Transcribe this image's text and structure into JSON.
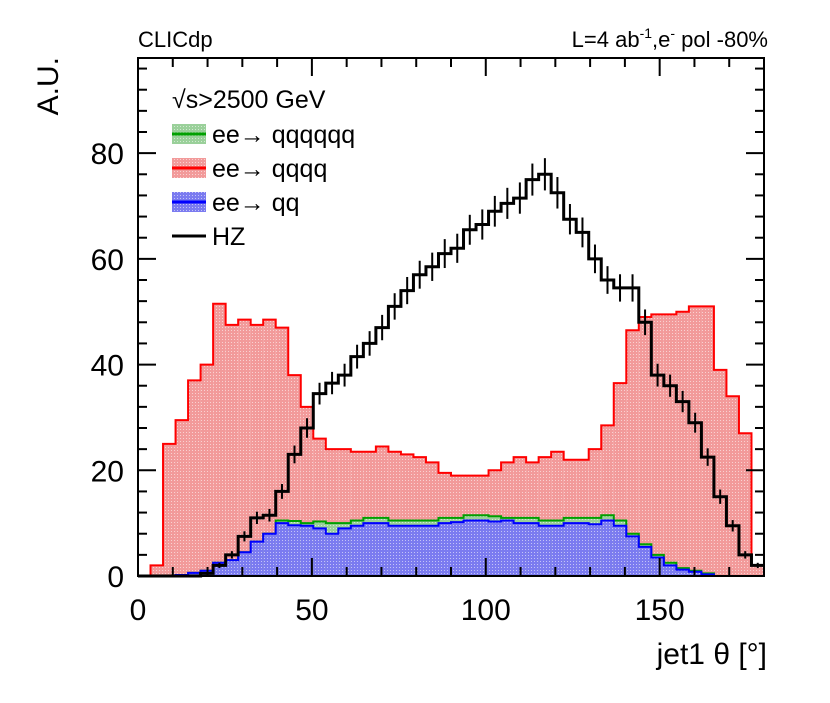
{
  "chart_data": {
    "type": "bar",
    "experiment_label": "CLICdp",
    "lumi_label": "L=4 ab",
    "lumi_sup": "-1",
    "lumi_mid": ",e",
    "lumi_sup2": "-",
    "lumi_end": " pol -80%",
    "legend_title": "√s>2500 GeV",
    "ylabel": "A.U.",
    "xlabel": "jet1 θ [°]",
    "xlim": [
      0,
      180
    ],
    "ylim": [
      0,
      98
    ],
    "x_ticks": [
      "0",
      "50",
      "100",
      "150"
    ],
    "y_ticks": [
      "0",
      "20",
      "40",
      "60",
      "80"
    ],
    "bin_width": 3.6,
    "x_bin_low_edges": [
      0,
      3.6,
      7.2,
      10.8,
      14.4,
      18,
      21.6,
      25.2,
      28.8,
      32.4,
      36,
      39.6,
      43.2,
      46.8,
      50.4,
      54,
      57.6,
      61.2,
      64.8,
      68.4,
      72,
      75.6,
      79.2,
      82.8,
      86.4,
      90,
      93.6,
      97.2,
      100.8,
      104.4,
      108,
      111.6,
      115.2,
      118.8,
      122.4,
      126,
      129.6,
      133.2,
      136.8,
      140.4,
      144,
      147.6,
      151.2,
      154.8,
      158.4,
      162,
      165.6,
      169.2,
      172.8,
      176.4
    ],
    "stacked_series": [
      {
        "name": "ee→ qq",
        "color": "#0000ff",
        "fill": "#7b7bf0",
        "values": [
          0,
          0,
          0,
          0.2,
          0.6,
          1,
          2.5,
          3,
          4.5,
          6.5,
          8,
          10,
          9.6,
          9.5,
          9,
          8,
          9,
          9.5,
          10,
          10,
          9.5,
          9.5,
          9.5,
          9.5,
          10,
          10.2,
          10.5,
          10.5,
          10.3,
          10.5,
          10,
          10,
          9.5,
          9.5,
          10,
          10,
          9.8,
          10.5,
          9.5,
          7.5,
          5.5,
          3.5,
          2,
          1.2,
          0.8,
          0.3,
          0,
          0,
          0,
          0
        ]
      },
      {
        "name": "ee→ qqqq",
        "color": "#ff0000",
        "fill": "#f29a9a",
        "values": [
          0,
          2,
          25,
          29.5,
          37,
          40,
          51.5,
          47.5,
          48.5,
          47.5,
          48.5,
          47,
          38,
          32,
          26,
          24,
          24,
          23.5,
          23.5,
          24.5,
          23.5,
          23,
          22.5,
          21.5,
          19.5,
          19,
          19,
          19,
          20,
          21.5,
          22.5,
          21.5,
          22.5,
          23.5,
          22,
          22,
          24,
          28.5,
          36.5,
          46.5,
          49,
          49.5,
          49.5,
          50,
          51,
          51,
          39,
          34,
          27,
          2
        ]
      },
      {
        "name": "ee→ qqqqqq",
        "color": "#00a000",
        "fill": "#9ad09a",
        "values": [
          0,
          0,
          0,
          0.2,
          0.6,
          1,
          2.5,
          3,
          4.5,
          6.5,
          8,
          10.5,
          10.4,
          10,
          10.3,
          10,
          10,
          10.5,
          11,
          11,
          10.5,
          10.5,
          10.5,
          10.5,
          11,
          11,
          11.5,
          11.5,
          11.3,
          11,
          11,
          11,
          10.5,
          10.5,
          11,
          11,
          11,
          11.5,
          10.5,
          8,
          6,
          4,
          2.5,
          1.5,
          1,
          0.5,
          0,
          0,
          0,
          0
        ]
      }
    ],
    "line_series": [
      {
        "name": "HZ",
        "color": "#000000",
        "values": [
          0,
          0,
          0,
          0,
          0,
          0.5,
          2,
          4,
          7.5,
          11,
          11.5,
          16,
          23,
          28,
          34.5,
          36.5,
          38,
          41.5,
          44,
          47,
          51,
          54,
          57,
          58.5,
          61,
          62,
          65.5,
          66.5,
          69,
          70.5,
          71.5,
          75,
          76,
          72.5,
          67.5,
          65,
          60,
          56,
          54.5,
          54.5,
          48,
          38,
          36,
          33,
          29,
          22.5,
          15,
          9.5,
          4,
          2
        ]
      }
    ],
    "legend": [
      {
        "label": "ee→ qqqqqq",
        "kind": "fill",
        "color": "#00a000",
        "fill": "#9ad09a"
      },
      {
        "label": "ee→ qqqq",
        "kind": "fill",
        "color": "#ff0000",
        "fill": "#f29a9a"
      },
      {
        "label": "ee→ qq",
        "kind": "fill",
        "color": "#0000ff",
        "fill": "#7b7bf0"
      },
      {
        "label": "HZ",
        "kind": "line",
        "color": "#000000"
      }
    ],
    "grid": false,
    "legend_position": "top-left"
  }
}
